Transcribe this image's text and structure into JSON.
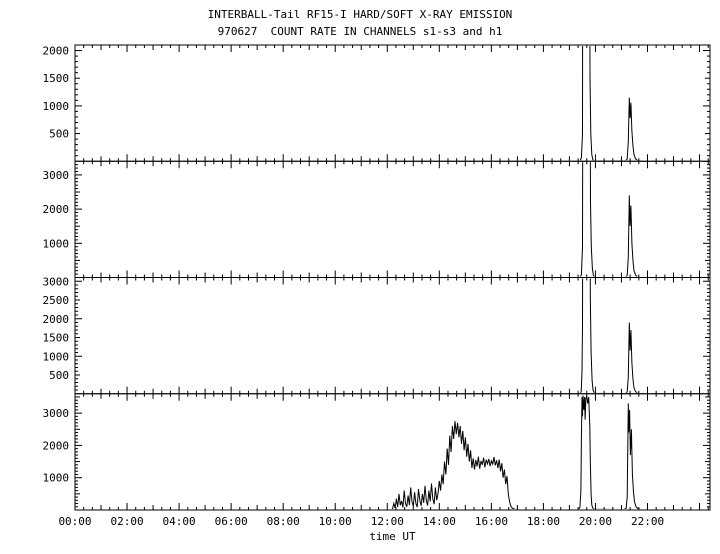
{
  "title": "INTERBALL-Tail RF15-I HARD/SOFT X-RAY EMISSION",
  "subtitle": "970627  COUNT RATE IN CHANNELS s1-s3 and h1",
  "xlabel": "time UT",
  "colors": {
    "line": "#000000",
    "background": "#ffffff"
  },
  "x_axis": {
    "lim": [
      0,
      24.4
    ],
    "major_step": 2,
    "minor_step": 0.3333,
    "labels": [
      "00:00",
      "02:00",
      "04:00",
      "06:00",
      "08:00",
      "10:00",
      "12:00",
      "14:00",
      "16:00",
      "18:00",
      "20:00",
      "22:00"
    ]
  },
  "chart_data": [
    {
      "name": "s1",
      "type": "line",
      "ylim": [
        0,
        2100
      ],
      "y_minor": 100,
      "yticks": [
        500,
        1000,
        1500,
        2000
      ],
      "points": [
        [
          0,
          3
        ],
        [
          19.4,
          4
        ],
        [
          19.46,
          60
        ],
        [
          19.5,
          500
        ],
        [
          19.52,
          9000
        ],
        [
          19.76,
          9000
        ],
        [
          19.79,
          1500
        ],
        [
          19.82,
          500
        ],
        [
          19.86,
          120
        ],
        [
          19.9,
          25
        ],
        [
          19.95,
          8
        ],
        [
          21.15,
          6
        ],
        [
          21.22,
          40
        ],
        [
          21.26,
          350
        ],
        [
          21.3,
          1150
        ],
        [
          21.33,
          780
        ],
        [
          21.36,
          1060
        ],
        [
          21.4,
          540
        ],
        [
          21.44,
          270
        ],
        [
          21.48,
          120
        ],
        [
          21.54,
          45
        ],
        [
          21.62,
          12
        ],
        [
          21.75,
          5
        ],
        [
          24.4,
          3
        ]
      ]
    },
    {
      "name": "s2",
      "type": "line",
      "ylim": [
        0,
        3400
      ],
      "y_minor": 100,
      "yticks": [
        1000,
        2000,
        3000
      ],
      "points": [
        [
          0,
          4
        ],
        [
          19.4,
          5
        ],
        [
          19.46,
          80
        ],
        [
          19.5,
          900
        ],
        [
          19.52,
          9000
        ],
        [
          19.78,
          9000
        ],
        [
          19.81,
          2200
        ],
        [
          19.84,
          900
        ],
        [
          19.88,
          250
        ],
        [
          19.92,
          60
        ],
        [
          19.97,
          12
        ],
        [
          21.15,
          8
        ],
        [
          21.22,
          60
        ],
        [
          21.26,
          600
        ],
        [
          21.3,
          2400
        ],
        [
          21.33,
          1500
        ],
        [
          21.36,
          2100
        ],
        [
          21.4,
          1000
        ],
        [
          21.44,
          480
        ],
        [
          21.48,
          200
        ],
        [
          21.54,
          70
        ],
        [
          21.62,
          18
        ],
        [
          21.75,
          6
        ],
        [
          24.4,
          4
        ]
      ]
    },
    {
      "name": "s3",
      "type": "line",
      "ylim": [
        0,
        3100
      ],
      "y_minor": 100,
      "yticks": [
        500,
        1000,
        1500,
        2000,
        2500,
        3000
      ],
      "points": [
        [
          0,
          3
        ],
        [
          19.4,
          4
        ],
        [
          19.45,
          50
        ],
        [
          19.48,
          600
        ],
        [
          19.5,
          1800
        ],
        [
          19.52,
          9000
        ],
        [
          19.78,
          9000
        ],
        [
          19.8,
          2600
        ],
        [
          19.83,
          1100
        ],
        [
          19.87,
          350
        ],
        [
          19.91,
          90
        ],
        [
          19.96,
          15
        ],
        [
          21.15,
          7
        ],
        [
          21.22,
          50
        ],
        [
          21.26,
          450
        ],
        [
          21.3,
          1900
        ],
        [
          21.33,
          1150
        ],
        [
          21.36,
          1700
        ],
        [
          21.4,
          820
        ],
        [
          21.44,
          380
        ],
        [
          21.48,
          160
        ],
        [
          21.54,
          55
        ],
        [
          21.62,
          14
        ],
        [
          21.75,
          5
        ],
        [
          24.4,
          3
        ]
      ]
    },
    {
      "name": "h1",
      "type": "line",
      "ylim": [
        0,
        3600
      ],
      "y_minor": 100,
      "yticks": [
        1000,
        2000,
        3000
      ],
      "points": [
        [
          0,
          5
        ],
        [
          12.15,
          5
        ],
        [
          12.2,
          30
        ],
        [
          12.25,
          200
        ],
        [
          12.3,
          60
        ],
        [
          12.35,
          350
        ],
        [
          12.4,
          90
        ],
        [
          12.45,
          500
        ],
        [
          12.5,
          150
        ],
        [
          12.55,
          280
        ],
        [
          12.6,
          80
        ],
        [
          12.65,
          600
        ],
        [
          12.7,
          200
        ],
        [
          12.75,
          100
        ],
        [
          12.8,
          450
        ],
        [
          12.85,
          150
        ],
        [
          12.9,
          700
        ],
        [
          12.95,
          250
        ],
        [
          13.0,
          120
        ],
        [
          13.05,
          550
        ],
        [
          13.1,
          200
        ],
        [
          13.15,
          90
        ],
        [
          13.2,
          650
        ],
        [
          13.25,
          300
        ],
        [
          13.3,
          130
        ],
        [
          13.35,
          500
        ],
        [
          13.4,
          220
        ],
        [
          13.45,
          750
        ],
        [
          13.5,
          300
        ],
        [
          13.55,
          140
        ],
        [
          13.6,
          600
        ],
        [
          13.65,
          260
        ],
        [
          13.7,
          820
        ],
        [
          13.75,
          350
        ],
        [
          13.8,
          180
        ],
        [
          13.85,
          700
        ],
        [
          13.9,
          300
        ],
        [
          13.95,
          500
        ],
        [
          14.0,
          900
        ],
        [
          14.05,
          600
        ],
        [
          14.1,
          1100
        ],
        [
          14.15,
          800
        ],
        [
          14.2,
          1500
        ],
        [
          14.25,
          1100
        ],
        [
          14.3,
          1900
        ],
        [
          14.35,
          1400
        ],
        [
          14.4,
          2300
        ],
        [
          14.45,
          1800
        ],
        [
          14.5,
          2600
        ],
        [
          14.55,
          2200
        ],
        [
          14.6,
          2750
        ],
        [
          14.65,
          2350
        ],
        [
          14.7,
          2700
        ],
        [
          14.75,
          2250
        ],
        [
          14.8,
          2600
        ],
        [
          14.85,
          2050
        ],
        [
          14.9,
          2450
        ],
        [
          14.95,
          1850
        ],
        [
          15.0,
          2250
        ],
        [
          15.05,
          1650
        ],
        [
          15.1,
          2050
        ],
        [
          15.15,
          1500
        ],
        [
          15.2,
          1850
        ],
        [
          15.25,
          1300
        ],
        [
          15.3,
          1600
        ],
        [
          15.35,
          1250
        ],
        [
          15.4,
          1550
        ],
        [
          15.45,
          1350
        ],
        [
          15.5,
          1650
        ],
        [
          15.55,
          1280
        ],
        [
          15.6,
          1520
        ],
        [
          15.65,
          1400
        ],
        [
          15.7,
          1620
        ],
        [
          15.75,
          1320
        ],
        [
          15.8,
          1560
        ],
        [
          15.85,
          1430
        ],
        [
          15.9,
          1580
        ],
        [
          15.95,
          1360
        ],
        [
          16.0,
          1520
        ],
        [
          16.05,
          1420
        ],
        [
          16.1,
          1640
        ],
        [
          16.15,
          1380
        ],
        [
          16.2,
          1540
        ],
        [
          16.25,
          1300
        ],
        [
          16.3,
          1560
        ],
        [
          16.35,
          1200
        ],
        [
          16.4,
          1450
        ],
        [
          16.45,
          1000
        ],
        [
          16.5,
          1250
        ],
        [
          16.55,
          800
        ],
        [
          16.6,
          1050
        ],
        [
          16.65,
          500
        ],
        [
          16.7,
          250
        ],
        [
          16.75,
          120
        ],
        [
          16.8,
          60
        ],
        [
          16.9,
          25
        ],
        [
          17.0,
          12
        ],
        [
          19.35,
          10
        ],
        [
          19.4,
          80
        ],
        [
          19.44,
          600
        ],
        [
          19.46,
          2200
        ],
        [
          19.48,
          3500
        ],
        [
          19.5,
          2900
        ],
        [
          19.52,
          3550
        ],
        [
          19.55,
          3100
        ],
        [
          19.58,
          3500
        ],
        [
          19.6,
          2800
        ],
        [
          19.63,
          3450
        ],
        [
          19.66,
          3550
        ],
        [
          19.7,
          3300
        ],
        [
          19.74,
          3500
        ],
        [
          19.78,
          2600
        ],
        [
          19.8,
          1500
        ],
        [
          19.83,
          500
        ],
        [
          19.86,
          150
        ],
        [
          19.9,
          60
        ],
        [
          19.95,
          25
        ],
        [
          21.1,
          15
        ],
        [
          21.18,
          60
        ],
        [
          21.22,
          400
        ],
        [
          21.26,
          3300
        ],
        [
          21.28,
          2400
        ],
        [
          21.31,
          3100
        ],
        [
          21.34,
          1700
        ],
        [
          21.38,
          2500
        ],
        [
          21.42,
          1100
        ],
        [
          21.46,
          550
        ],
        [
          21.5,
          250
        ],
        [
          21.56,
          100
        ],
        [
          21.64,
          35
        ],
        [
          21.75,
          12
        ],
        [
          24.4,
          5
        ]
      ]
    }
  ]
}
